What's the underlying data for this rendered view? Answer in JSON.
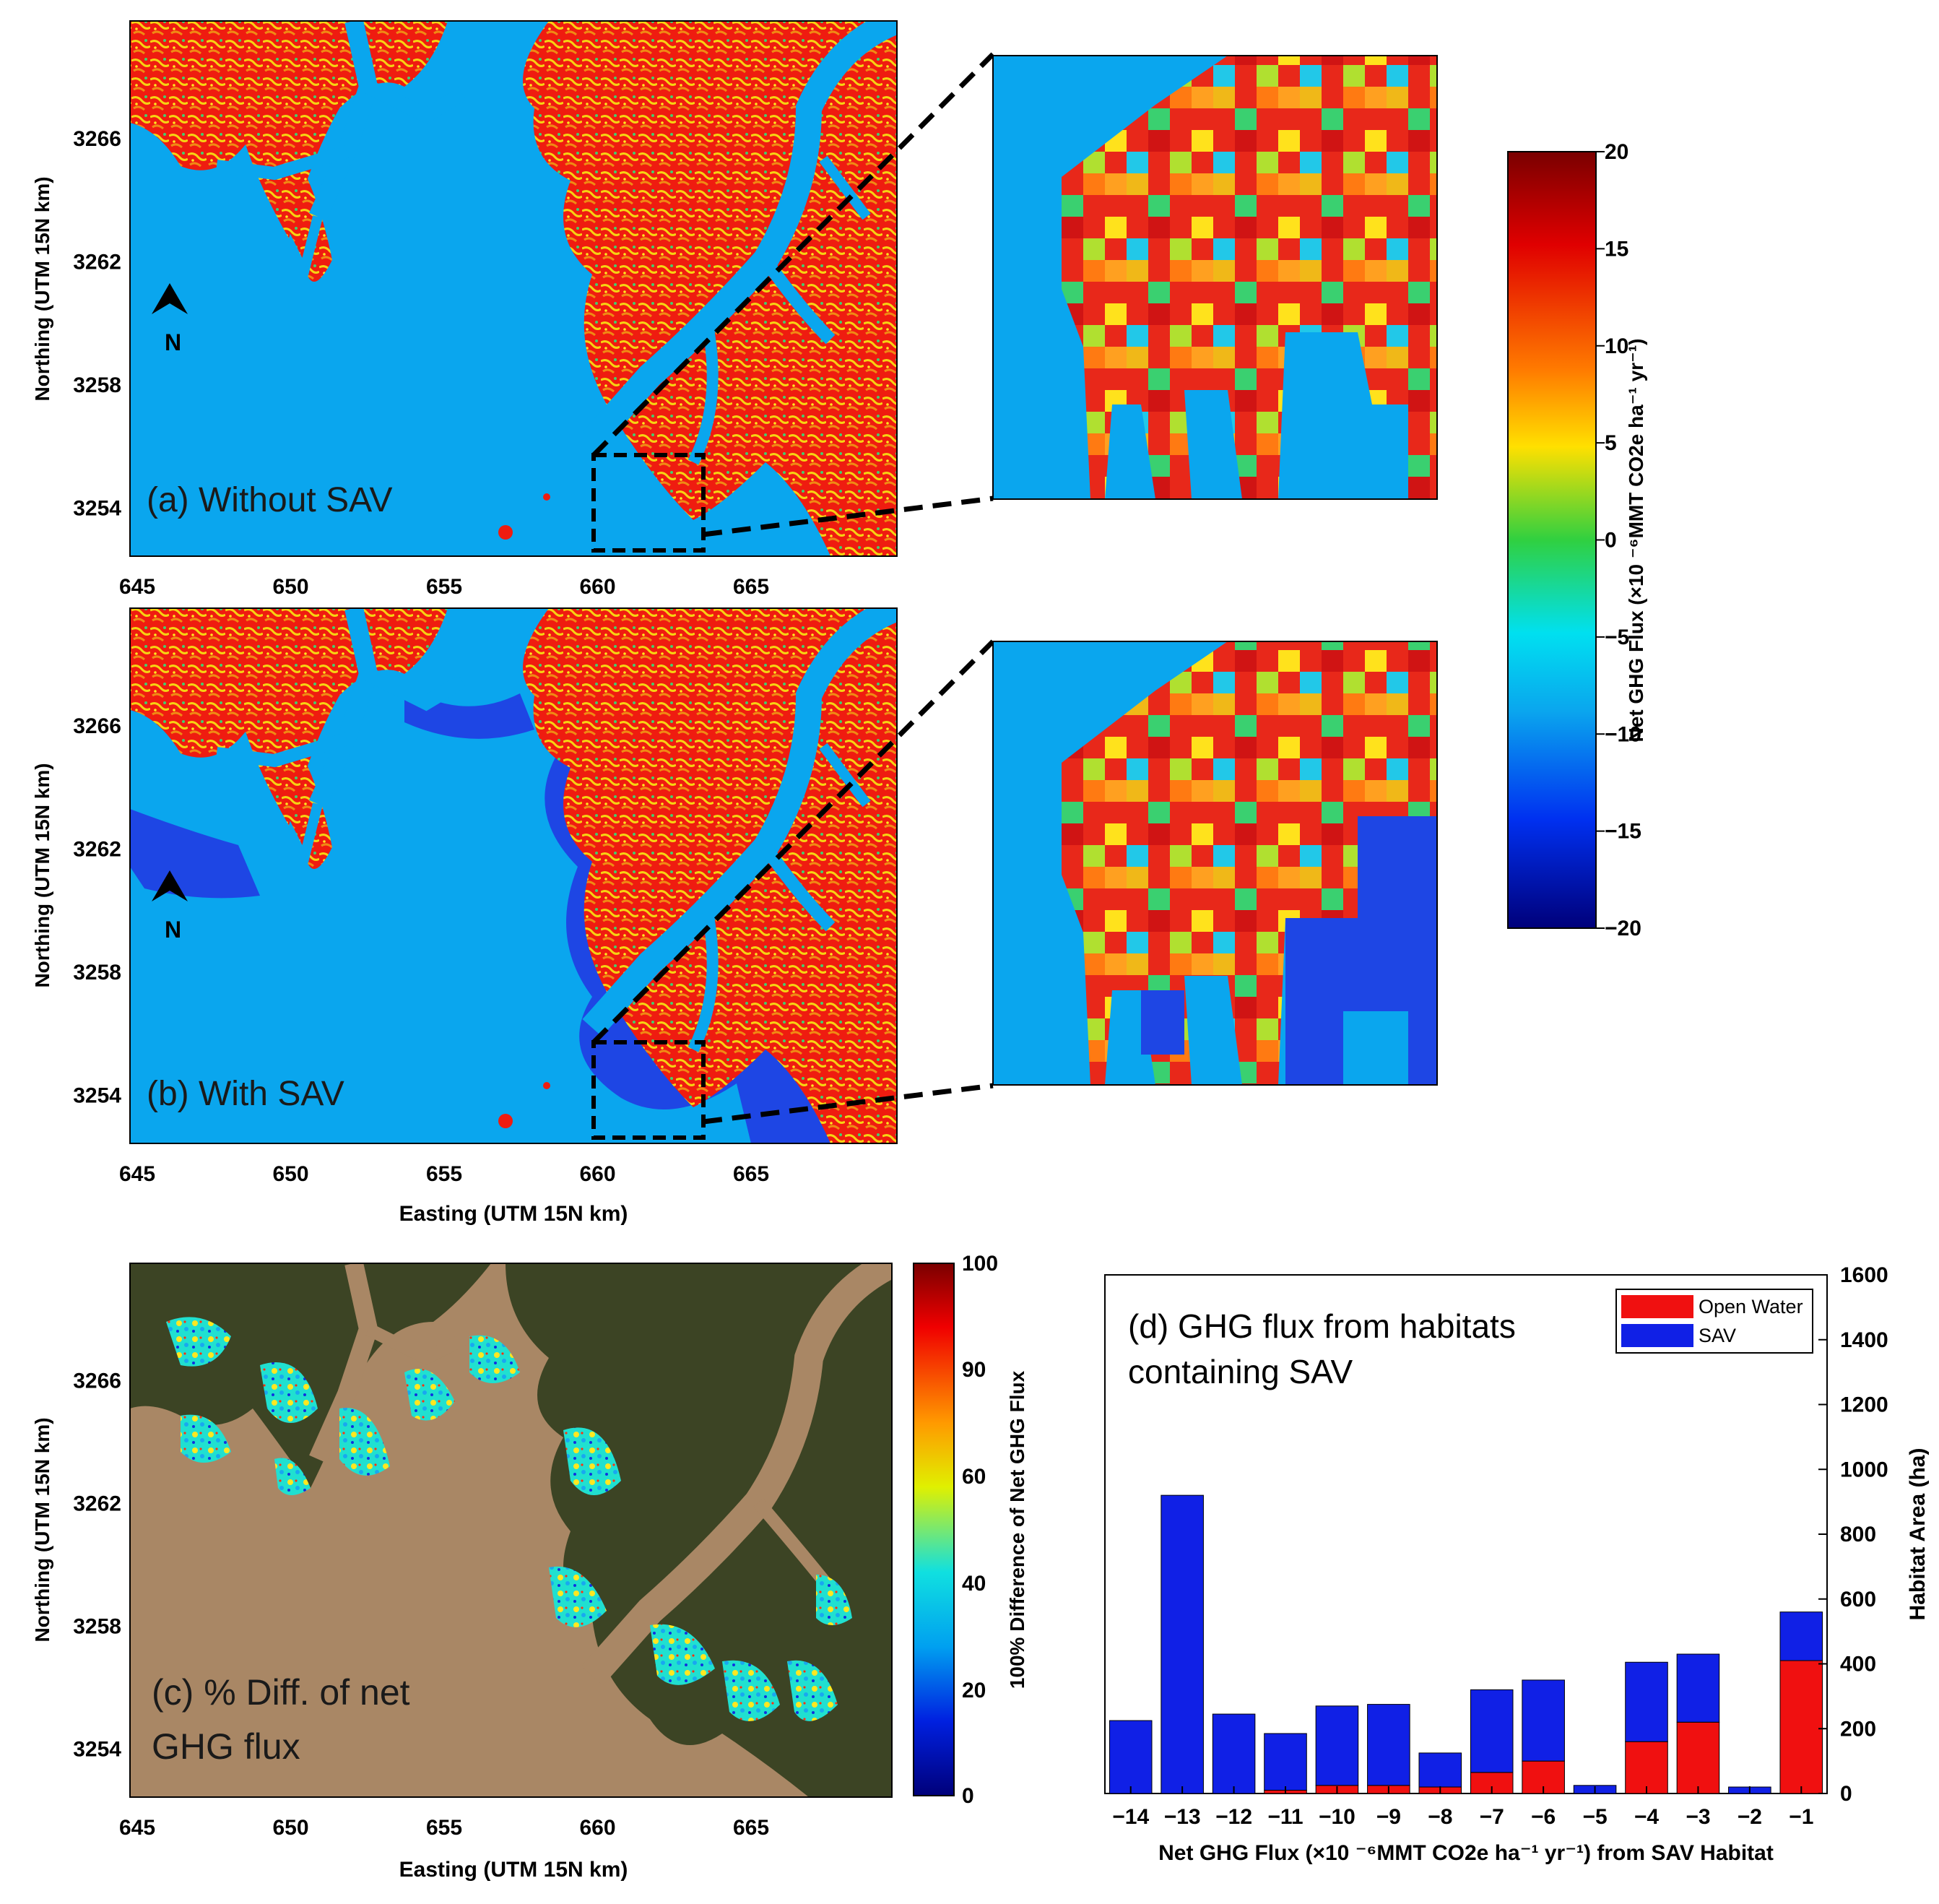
{
  "colors": {
    "water": "#0aa6ee",
    "marsh_hi": "#ef1c10",
    "sav_dark": "#1e46e4",
    "bar_open_water": "#f01010",
    "bar_sav": "#1020e6",
    "sat_water": "#a98765",
    "sat_land": "#3c4424"
  },
  "icons": {
    "north_arrow": "north-arrow-icon"
  },
  "panel_a": {
    "label": "(a) Without SAV",
    "north": "N"
  },
  "panel_b": {
    "label": "(b) With SAV",
    "north": "N"
  },
  "panel_c": {
    "label_line1": "(c) % Diff. of net",
    "label_line2": "GHG flux"
  },
  "map_axes": {
    "ylabel": "Northing (UTM 15N km)",
    "xlabel": "Easting (UTM 15N km)",
    "x_ticks": [
      "645",
      "650",
      "655",
      "660",
      "665"
    ],
    "y_ticks": [
      "3266",
      "3262",
      "3258",
      "3254"
    ]
  },
  "colorbar_flux": {
    "label": "Net GHG Flux (×10 ⁻⁶MMT CO2e ha⁻¹ yr⁻¹)",
    "ticks": [
      "20",
      "15",
      "10",
      "5",
      "0",
      "−5",
      "−10",
      "−15",
      "−20"
    ]
  },
  "colorbar_diff": {
    "label": "100% Difference of Net GHG Flux",
    "ticks": [
      "100",
      "90",
      "60",
      "40",
      "20",
      "0"
    ]
  },
  "chart_data": {
    "type": "bar",
    "title": "(d) GHG flux from habitats containing SAV",
    "title_line1": "(d) GHG flux from habitats",
    "title_line2": "containing SAV",
    "xlabel": "Net GHG Flux (×10 ⁻⁶MMT CO2e ha⁻¹ yr⁻¹) from SAV Habitat",
    "ylabel": "Habitat Area (ha)",
    "categories": [
      "−14",
      "−13",
      "−12",
      "−11",
      "−10",
      "−9",
      "−8",
      "−7",
      "−6",
      "−5",
      "−4",
      "−3",
      "−2",
      "−1"
    ],
    "stacked": true,
    "series": [
      {
        "name": "Open Water",
        "values": [
          0,
          0,
          0,
          10,
          25,
          25,
          20,
          65,
          100,
          0,
          160,
          220,
          0,
          410
        ]
      },
      {
        "name": "SAV",
        "values": [
          225,
          920,
          245,
          175,
          245,
          250,
          105,
          255,
          250,
          25,
          245,
          210,
          20,
          150
        ]
      }
    ],
    "ylim": [
      0,
      1600
    ],
    "y_ticks": [
      "0",
      "200",
      "400",
      "600",
      "800",
      "1000",
      "1200",
      "1400",
      "1600"
    ],
    "legend_position": "top-right"
  }
}
